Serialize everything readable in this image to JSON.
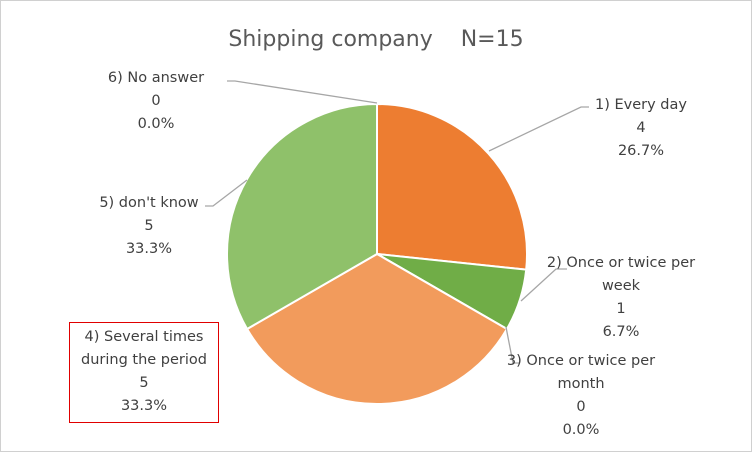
{
  "chart_data": {
    "type": "pie",
    "title": "Shipping company    N=15",
    "categories": [
      "1) Every day",
      "2) Once or twice per week",
      "3) Once or twice per month",
      "4) Several times during the period",
      "5) don't know",
      "6) No answer"
    ],
    "values": [
      4,
      1,
      0,
      5,
      5,
      0
    ],
    "percent_labels": [
      "26.7%",
      "6.7%",
      "0.0%",
      "33.3%",
      "33.3%",
      "0.0%"
    ],
    "colors": [
      "#ed7d31",
      "#70ad47",
      "#a5a5a5",
      "#f29b5c",
      "#8fc16a",
      "#5b9bd5"
    ]
  }
}
